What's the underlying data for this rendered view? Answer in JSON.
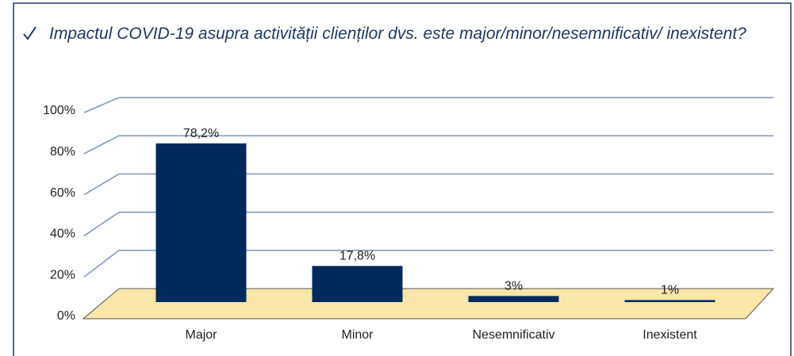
{
  "chart_data": {
    "type": "bar",
    "title": "Impactul COVID-19 asupra activității clienților dvs. este major/minor/nesemnificativ/ inexistent?",
    "categories": [
      "Major",
      "Minor",
      "Nesemnificativ",
      "Inexistent"
    ],
    "values": [
      78.2,
      17.8,
      3,
      1
    ],
    "value_labels": [
      "78,2%",
      "17,8%",
      "3%",
      "1%"
    ],
    "color": "#002a5c",
    "ylim": [
      0,
      100
    ],
    "yticks": [
      {
        "value": 0,
        "label": "0%"
      },
      {
        "value": 20,
        "label": "20%"
      },
      {
        "value": 40,
        "label": "40%"
      },
      {
        "value": 60,
        "label": "60%"
      },
      {
        "value": 80,
        "label": "80%"
      },
      {
        "value": 100,
        "label": "100%"
      }
    ],
    "grid": true
  }
}
